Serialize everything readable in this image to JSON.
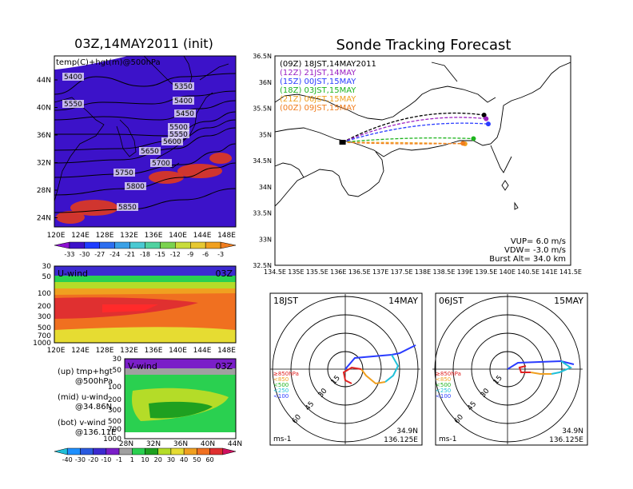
{
  "init_title": "03Z,14MAY2011 (init)",
  "main_title": "Sonde Tracking Forecast",
  "colors": {
    "temp": [
      "#8c0fd1",
      "#3c12c9",
      "#1e3cff",
      "#2d6ef0",
      "#3aa0e6",
      "#4ac9d2",
      "#50d2a0",
      "#7ad24f",
      "#c8dc3c",
      "#e6c832",
      "#f0a020",
      "#f07d1e",
      "#f05a1e",
      "#e03a1e"
    ],
    "wind": [
      "#20c0d8",
      "#1e90ff",
      "#2a5ae0",
      "#3c2ad0",
      "#7a1ec8",
      "#a0a0a0",
      "#2ad050",
      "#1ea020",
      "#b4dc28",
      "#e6dc32",
      "#f0a020",
      "#f07020",
      "#e03030",
      "#d01060"
    ],
    "tracks": [
      "#000000",
      "#9b1fc2",
      "#2a3cff",
      "#1eb41e",
      "#f0a020",
      "#f07d1e"
    ]
  },
  "map_panel": {
    "label": "temp(C)+hgt(m)@500hPa",
    "lat_ticks": [
      "44N",
      "40N",
      "36N",
      "32N",
      "28N",
      "24N"
    ],
    "lon_ticks": [
      "120E",
      "124E",
      "128E",
      "132E",
      "136E",
      "140E",
      "144E",
      "148E"
    ],
    "contours": [
      "5400",
      "5350",
      "5550",
      "5400",
      "5450",
      "5500",
      "5550",
      "5600",
      "5650",
      "5700",
      "5750",
      "5800",
      "5850"
    ],
    "colorbar": [
      "-33",
      "-30",
      "-27",
      "-24",
      "-21",
      "-18",
      "-15",
      "-12",
      "-9",
      "-6",
      "-3"
    ]
  },
  "u_panel": {
    "label": "U-wind",
    "time": "03Z",
    "levels": [
      "30",
      "50",
      "100",
      "200",
      "300",
      "500",
      "700",
      "1000"
    ],
    "lon_ticks": [
      "120E",
      "124E",
      "128E",
      "132E",
      "136E",
      "140E",
      "144E",
      "148E"
    ]
  },
  "v_panel": {
    "label": "V-wind",
    "time": "03Z",
    "levels": [
      "30",
      "50",
      "100",
      "200",
      "300",
      "500",
      "700",
      "1000"
    ],
    "lat_ticks": [
      "28N",
      "32N",
      "36N",
      "40N",
      "44N"
    ],
    "colorbar": [
      "-40",
      "-30",
      "-20",
      "-10",
      "-1",
      "1",
      "10",
      "20",
      "30",
      "40",
      "50",
      "60"
    ]
  },
  "legend_notes": [
    {
      "head": "(up) tmp+hgt",
      "sub": "@500hPa"
    },
    {
      "head": "(mid) u-wind",
      "sub": "@34.86N"
    },
    {
      "head": "(bot) v-wind",
      "sub": "@136.11E"
    }
  ],
  "track_panel": {
    "tracks": [
      "(09Z)  18JST,14MAY2011",
      "(12Z)  21JST,14MAY",
      "(15Z)  00JST,15MAY",
      "(18Z)  03JST,15MAY",
      "(21Z)  06JST,15MAY",
      "(00Z)  09JST,15MAY"
    ],
    "lat_ticks": [
      "36.5N",
      "36N",
      "35.5N",
      "35N",
      "34.5N",
      "34N",
      "33.5N",
      "33N",
      "32.5N"
    ],
    "lon_ticks": [
      "134.5E",
      "135E",
      "135.5E",
      "136E",
      "136.5E",
      "137E",
      "137.5E",
      "138E",
      "138.5E",
      "139E",
      "139.5E",
      "140E",
      "140.5E",
      "141E",
      "141.5E"
    ],
    "vup": "VUP=  6.0  m/s",
    "vdw": "VDW= -3.0  m/s",
    "burst": "Burst Alt=  34.0  km"
  },
  "hodographs": [
    {
      "time": "18JST",
      "date": "14MAY",
      "ring_labels": [
        "15",
        "30",
        "45",
        "60"
      ],
      "unit": "ms-1",
      "lat": "34.9N",
      "lon": "136.125E"
    },
    {
      "time": "06JST",
      "date": "15MAY",
      "ring_labels": [
        "15",
        "30",
        "45",
        "60"
      ],
      "unit": "ms-1",
      "lat": "34.9N",
      "lon": "136.125E"
    }
  ],
  "hodo_legend": [
    "≥850hPa",
    "<850",
    "<500",
    "<250",
    "<100"
  ],
  "hodo_colors": [
    "#e02020",
    "#f0a020",
    "#1eb41e",
    "#20c0d8",
    "#2a3cff"
  ],
  "chart_data": {
    "type": "line",
    "title": "Sonde Tracking Forecast",
    "xlim": [
      134.5,
      141.5
    ],
    "ylim": [
      32.5,
      36.5
    ],
    "series": [
      {
        "name": "(09Z)  18JST,14MAY2011",
        "launch": [
          136.1,
          34.85
        ],
        "end": [
          139.45,
          35.37
        ]
      },
      {
        "name": "(12Z)  21JST,14MAY",
        "launch": [
          136.1,
          34.85
        ],
        "end": [
          139.5,
          35.3
        ]
      },
      {
        "name": "(15Z)  00JST,15MAY",
        "launch": [
          136.1,
          34.85
        ],
        "end": [
          139.55,
          35.2
        ]
      },
      {
        "name": "(18Z)  03JST,15MAY",
        "launch": [
          136.1,
          34.85
        ],
        "end": [
          139.2,
          34.92
        ]
      },
      {
        "name": "(21Z)  06JST,15MAY",
        "launch": [
          136.1,
          34.85
        ],
        "end": [
          139.0,
          34.82
        ]
      },
      {
        "name": "(00Z)  09JST,15MAY",
        "launch": [
          136.1,
          34.85
        ],
        "end": [
          138.95,
          34.83
        ]
      }
    ]
  }
}
